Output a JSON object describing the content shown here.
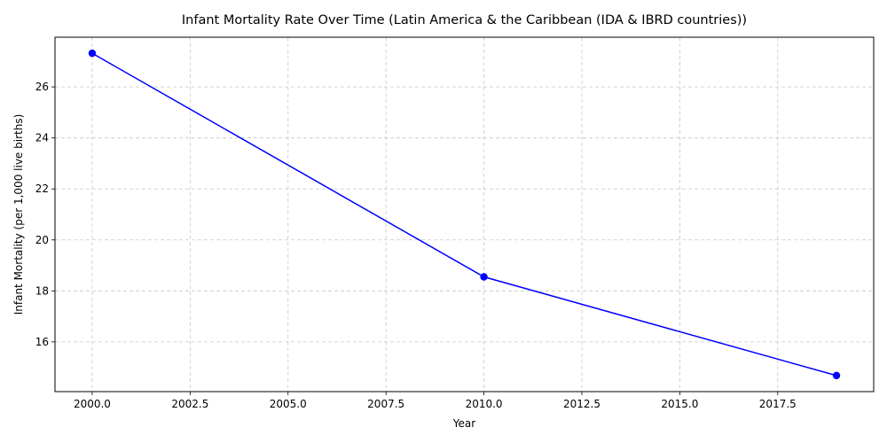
{
  "chart_data": {
    "type": "line",
    "title": "Infant Mortality Rate Over Time (Latin America & the Caribbean (IDA & IBRD countries))",
    "xlabel": "Year",
    "ylabel": "Infant Mortality (per 1,000 live births)",
    "xlim": [
      1999.05,
      2019.95
    ],
    "ylim": [
      14.05,
      27.95
    ],
    "x_ticks": [
      2000,
      2002.5,
      2005,
      2007.5,
      2010,
      2012.5,
      2015,
      2017.5
    ],
    "x_tick_labels": [
      "2000.0",
      "2002.5",
      "2005.0",
      "2007.5",
      "2010.0",
      "2012.5",
      "2015.0",
      "2017.5"
    ],
    "y_ticks": [
      16,
      18,
      20,
      22,
      24,
      26
    ],
    "y_tick_labels": [
      "16",
      "18",
      "20",
      "22",
      "24",
      "26"
    ],
    "grid": true,
    "legend": "none",
    "series": [
      {
        "color": "#0000ff",
        "marker": "circle",
        "x": [
          2000,
          2010,
          2019
        ],
        "y": [
          27.32,
          18.55,
          14.68
        ]
      }
    ]
  }
}
